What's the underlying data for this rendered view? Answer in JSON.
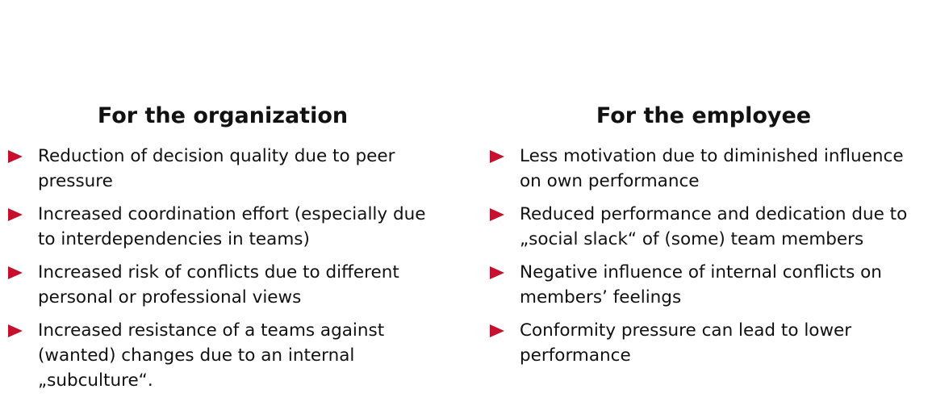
{
  "accent_color": "#c8102e",
  "left": {
    "title": "For the organization",
    "items": [
      [
        "Reduction of decision quality due to peer",
        "pressure"
      ],
      [
        "Increased coordination effort (especially due",
        "to interdependencies in teams)"
      ],
      [
        "Increased risk of conflicts due to different",
        "personal or professional views"
      ],
      [
        "Increased resistance of a teams against",
        "(wanted) changes due to an internal",
        "„subculture“."
      ]
    ]
  },
  "right": {
    "title": "For the employee",
    "items": [
      [
        "Less motivation due to diminished influence",
        "on own performance"
      ],
      [
        "Reduced performance and dedication due to",
        "„social slack“  of (some) team members"
      ],
      [
        "Negative influence of internal conflicts on",
        "members’ feelings"
      ],
      [
        "Conformity pressure can lead to lower",
        "performance"
      ]
    ]
  }
}
